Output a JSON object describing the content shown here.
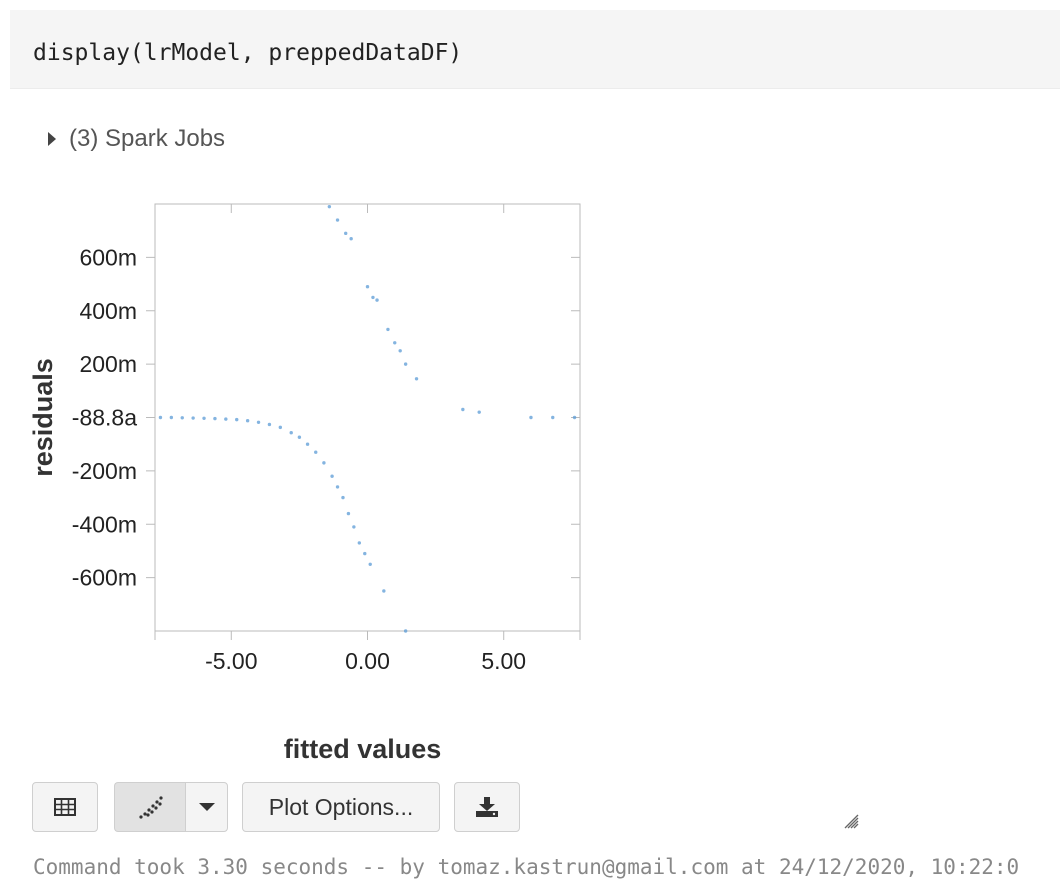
{
  "cell": {
    "code": "display(lrModel, preppedDataDF)"
  },
  "jobs": {
    "label": "(3) Spark Jobs"
  },
  "toolbar": {
    "table_icon": "table-icon",
    "chart_icon": "scatter-plot-icon",
    "dropdown_icon": "caret-down-icon",
    "plot_options_label": "Plot Options...",
    "download_icon": "download-icon"
  },
  "footer": {
    "text": "Command took 3.30 seconds -- by tomaz.kastrun@gmail.com at 24/12/2020, 10:22:0"
  },
  "colors": {
    "point": "#5b9bd5",
    "axis": "#bbbbbb"
  },
  "chart_data": {
    "type": "scatter",
    "xlabel": "fitted values",
    "ylabel": "residuals",
    "xlim": [
      -7.8,
      7.8
    ],
    "ylim": [
      -0.8,
      0.8
    ],
    "xticks": [
      {
        "value": -5,
        "label": "-5.00"
      },
      {
        "value": 0,
        "label": "0.00"
      },
      {
        "value": 5,
        "label": "5.00"
      }
    ],
    "yticks": [
      {
        "value": 0.6,
        "label": "600m"
      },
      {
        "value": 0.4,
        "label": "400m"
      },
      {
        "value": 0.2,
        "label": "200m"
      },
      {
        "value": 0,
        "label": "-88.8a"
      },
      {
        "value": -0.2,
        "label": "-200m"
      },
      {
        "value": -0.4,
        "label": "-400m"
      },
      {
        "value": -0.6,
        "label": "-600m"
      }
    ],
    "points": [
      {
        "x": -7.6,
        "y": 0.0
      },
      {
        "x": -7.2,
        "y": 0.0
      },
      {
        "x": -6.8,
        "y": -0.001
      },
      {
        "x": -6.4,
        "y": -0.002
      },
      {
        "x": -6.0,
        "y": -0.003
      },
      {
        "x": -5.6,
        "y": -0.004
      },
      {
        "x": -5.2,
        "y": -0.006
      },
      {
        "x": -4.8,
        "y": -0.008
      },
      {
        "x": -4.4,
        "y": -0.012
      },
      {
        "x": -4.0,
        "y": -0.018
      },
      {
        "x": -3.6,
        "y": -0.026
      },
      {
        "x": -3.2,
        "y": -0.037
      },
      {
        "x": -2.8,
        "y": -0.057
      },
      {
        "x": -2.5,
        "y": -0.074
      },
      {
        "x": -2.2,
        "y": -0.1
      },
      {
        "x": -1.9,
        "y": -0.13
      },
      {
        "x": -1.6,
        "y": -0.17
      },
      {
        "x": -1.3,
        "y": -0.22
      },
      {
        "x": -1.1,
        "y": -0.26
      },
      {
        "x": -0.9,
        "y": -0.3
      },
      {
        "x": -0.7,
        "y": -0.36
      },
      {
        "x": -0.5,
        "y": -0.41
      },
      {
        "x": -0.3,
        "y": -0.47
      },
      {
        "x": -0.1,
        "y": -0.51
      },
      {
        "x": 0.1,
        "y": -0.55
      },
      {
        "x": 0.6,
        "y": -0.65
      },
      {
        "x": 1.4,
        "y": -0.8
      },
      {
        "x": -1.4,
        "y": 0.79
      },
      {
        "x": -1.1,
        "y": 0.74
      },
      {
        "x": -0.8,
        "y": 0.69
      },
      {
        "x": -0.6,
        "y": 0.67
      },
      {
        "x": 0.0,
        "y": 0.49
      },
      {
        "x": 0.2,
        "y": 0.45
      },
      {
        "x": 0.35,
        "y": 0.44
      },
      {
        "x": 0.75,
        "y": 0.33
      },
      {
        "x": 1.0,
        "y": 0.28
      },
      {
        "x": 1.2,
        "y": 0.25
      },
      {
        "x": 1.4,
        "y": 0.2
      },
      {
        "x": 1.8,
        "y": 0.145
      },
      {
        "x": 3.5,
        "y": 0.03
      },
      {
        "x": 4.1,
        "y": 0.02
      },
      {
        "x": 6.0,
        "y": 0.0
      },
      {
        "x": 6.8,
        "y": 0.0
      },
      {
        "x": 7.6,
        "y": 0.0
      }
    ]
  }
}
